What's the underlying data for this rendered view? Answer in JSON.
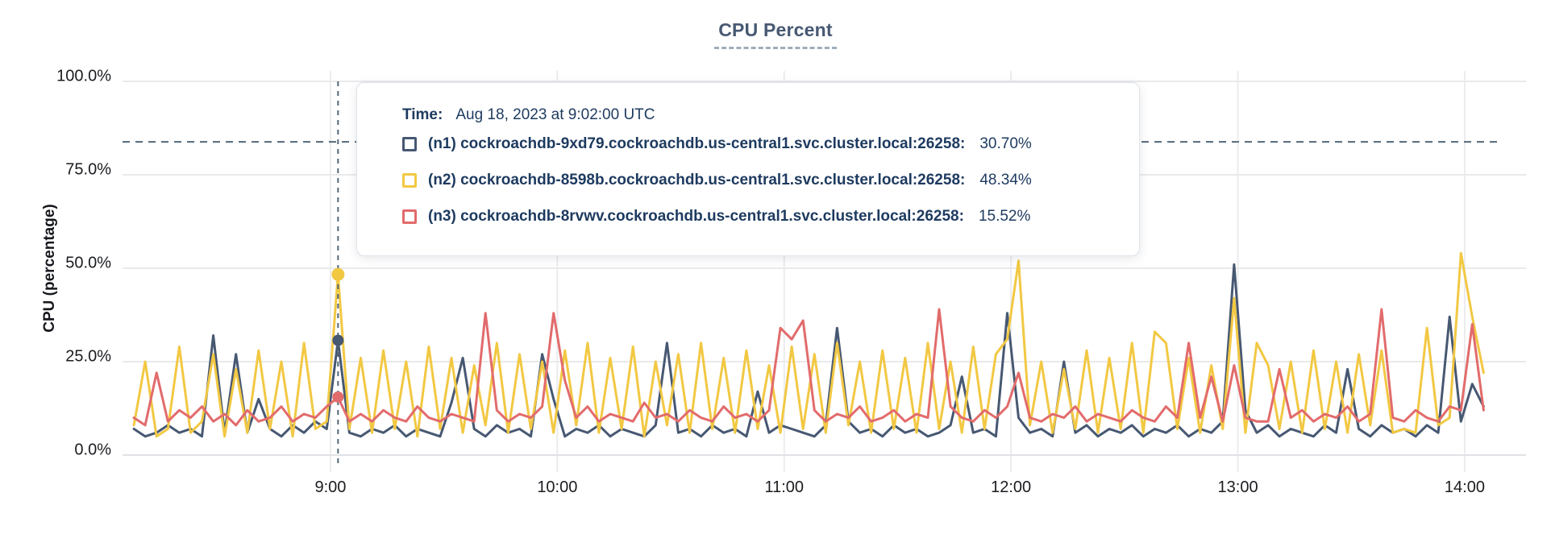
{
  "chart": {
    "title": "CPU Percent",
    "ylabel": "CPU (percentage)",
    "y_ticks": [
      {
        "label": "100.0%",
        "value": 100
      },
      {
        "label": "75.0%",
        "value": 75
      },
      {
        "label": "50.0%",
        "value": 50
      },
      {
        "label": "25.0%",
        "value": 25
      },
      {
        "label": "0.0%",
        "value": 0
      }
    ],
    "x_ticks": [
      {
        "label": "9:00",
        "minute": 540
      },
      {
        "label": "10:00",
        "minute": 600
      },
      {
        "label": "11:00",
        "minute": 660
      },
      {
        "label": "12:00",
        "minute": 720
      },
      {
        "label": "13:00",
        "minute": 780
      },
      {
        "label": "14:00",
        "minute": 840
      }
    ]
  },
  "tooltip": {
    "time_label": "Time:",
    "time_value": "Aug 18, 2023 at 9:02:00 UTC",
    "series": [
      {
        "id": "n1",
        "name": "(n1) cockroachdb-9xd79.cockroachdb.us-central1.svc.cluster.local:26258:",
        "value": "30.70%",
        "color": "#475872"
      },
      {
        "id": "n2",
        "name": "(n2) cockroachdb-8598b.cockroachdb.us-central1.svc.cluster.local:26258:",
        "value": "48.34%",
        "color": "#f2c843"
      },
      {
        "id": "n3",
        "name": "(n3) cockroachdb-8rvwv.cockroachdb.us-central1.svc.cluster.local:26258:",
        "value": "15.52%",
        "color": "#e26b6c"
      }
    ]
  },
  "chart_data": {
    "type": "line",
    "title": "CPU Percent",
    "xlabel": "",
    "ylabel": "CPU (percentage)",
    "ylim": [
      0,
      100
    ],
    "xlim_minutes_utc": [
      485,
      856
    ],
    "grid": true,
    "legend_position": "tooltip-overlay",
    "guide_color": "#53687a",
    "dashed_threshold_pct": 83.8,
    "x_start_min": 488,
    "x_step_min": 3,
    "hover": {
      "minute_of_day": 542,
      "time_text": "Aug 18, 2023 at 9:02:00 UTC",
      "values": {
        "n1": 30.7,
        "n2": 48.34,
        "n3": 15.52
      }
    },
    "series": [
      {
        "id": "n1",
        "name": "(n1) cockroachdb-9xd79.cockroachdb.us-central1.svc.cluster.local:26258",
        "color": "#475872",
        "values": [
          7,
          5,
          6,
          8,
          6,
          7,
          5,
          32,
          6,
          27,
          6,
          15,
          7,
          5,
          8,
          6,
          9,
          7,
          30.7,
          6,
          5,
          7,
          6,
          8,
          5,
          7,
          6,
          5,
          14,
          26,
          7,
          5,
          8,
          6,
          7,
          5,
          27,
          15,
          5,
          7,
          6,
          8,
          5,
          7,
          6,
          5,
          8,
          30,
          6,
          7,
          5,
          8,
          6,
          7,
          5,
          17,
          6,
          8,
          7,
          6,
          5,
          8,
          34,
          9,
          6,
          7,
          5,
          8,
          6,
          7,
          5,
          6,
          8,
          21,
          6,
          7,
          5,
          38,
          10,
          6,
          7,
          5,
          25,
          6,
          8,
          5,
          7,
          6,
          8,
          5,
          7,
          6,
          8,
          5,
          7,
          6,
          9,
          51,
          12,
          6,
          8,
          5,
          7,
          6,
          5,
          8,
          6,
          23,
          7,
          5,
          8,
          6,
          7,
          5,
          8,
          6,
          37,
          9,
          19,
          13
        ]
      },
      {
        "id": "n2",
        "name": "(n2) cockroachdb-8598b.cockroachdb.us-central1.svc.cluster.local:26258",
        "color": "#f2c843",
        "values": [
          8,
          25,
          5,
          7,
          29,
          6,
          9,
          27,
          5,
          23,
          6,
          28,
          7,
          25,
          5,
          30,
          7,
          9,
          48.3,
          7,
          26,
          6,
          28,
          7,
          25,
          5,
          29,
          7,
          26,
          6,
          24,
          8,
          30,
          6,
          27,
          7,
          25,
          6,
          28,
          8,
          30,
          6,
          26,
          7,
          29,
          5,
          25,
          8,
          27,
          6,
          30,
          7,
          26,
          6,
          28,
          7,
          24,
          6,
          29,
          7,
          27,
          6,
          30,
          8,
          25,
          6,
          28,
          7,
          26,
          6,
          30,
          7,
          25,
          6,
          29,
          7,
          27,
          31,
          52,
          8,
          25,
          6,
          23,
          7,
          28,
          6,
          26,
          7,
          30,
          6,
          33,
          30,
          7,
          26,
          6,
          24,
          7,
          42,
          6,
          30,
          24,
          7,
          25,
          6,
          28,
          7,
          25,
          6,
          27,
          8,
          28,
          6,
          7,
          6,
          34,
          8,
          10,
          54,
          37,
          22
        ]
      },
      {
        "id": "n3",
        "name": "(n3) cockroachdb-8rvwv.cockroachdb.us-central1.svc.cluster.local:26258",
        "color": "#e26b6c",
        "values": [
          10,
          8,
          22,
          9,
          12,
          10,
          13,
          9,
          11,
          8,
          12,
          9,
          10,
          13,
          9,
          11,
          10,
          13,
          15.5,
          9,
          11,
          9,
          12,
          10,
          9,
          13,
          10,
          9,
          11,
          10,
          9,
          38,
          12,
          9,
          11,
          10,
          13,
          38,
          20,
          10,
          13,
          9,
          11,
          10,
          9,
          14,
          10,
          11,
          9,
          12,
          10,
          9,
          13,
          10,
          11,
          9,
          12,
          34,
          31,
          36,
          12,
          9,
          11,
          10,
          13,
          9,
          10,
          12,
          9,
          11,
          10,
          39,
          13,
          10,
          9,
          12,
          10,
          13,
          22,
          10,
          9,
          11,
          10,
          13,
          9,
          11,
          10,
          9,
          12,
          10,
          9,
          13,
          10,
          30,
          10,
          21,
          9,
          24,
          10,
          9,
          9,
          23,
          10,
          12,
          9,
          11,
          10,
          13,
          9,
          11,
          39,
          10,
          9,
          12,
          10,
          9,
          13,
          12,
          35,
          12
        ]
      }
    ]
  }
}
